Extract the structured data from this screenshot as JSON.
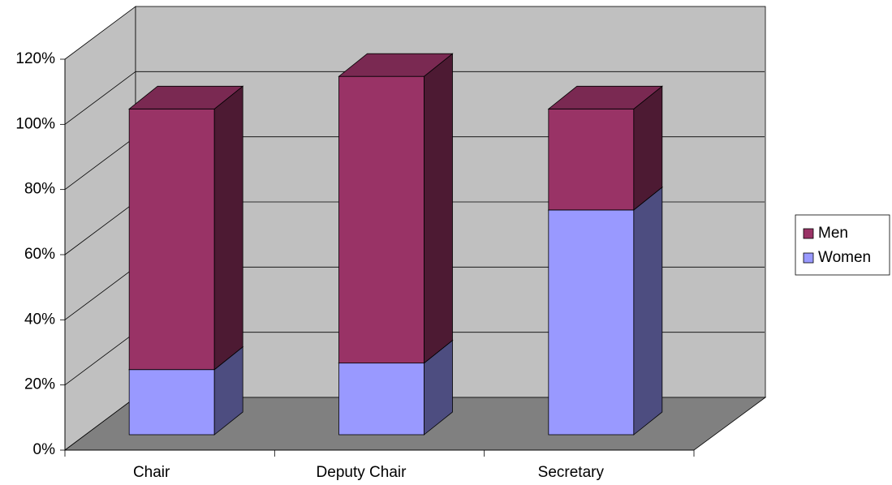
{
  "chart_data": {
    "type": "bar3d_stacked",
    "categories": [
      "Chair",
      "Deputy Chair",
      "Secretary"
    ],
    "series": [
      {
        "name": "Women",
        "color": "#9999ff",
        "values": [
          20,
          22,
          69
        ]
      },
      {
        "name": "Men",
        "color": "#993366",
        "values": [
          80,
          88,
          31
        ]
      }
    ],
    "ylim": [
      0,
      120
    ],
    "yticks": [
      {
        "value": 0,
        "label": "0%"
      },
      {
        "value": 20,
        "label": "20%"
      },
      {
        "value": 40,
        "label": "40%"
      },
      {
        "value": 60,
        "label": "60%"
      },
      {
        "value": 80,
        "label": "80%"
      },
      {
        "value": 100,
        "label": "100%"
      },
      {
        "value": 120,
        "label": "120%"
      }
    ],
    "grid": true,
    "legend": "right"
  }
}
